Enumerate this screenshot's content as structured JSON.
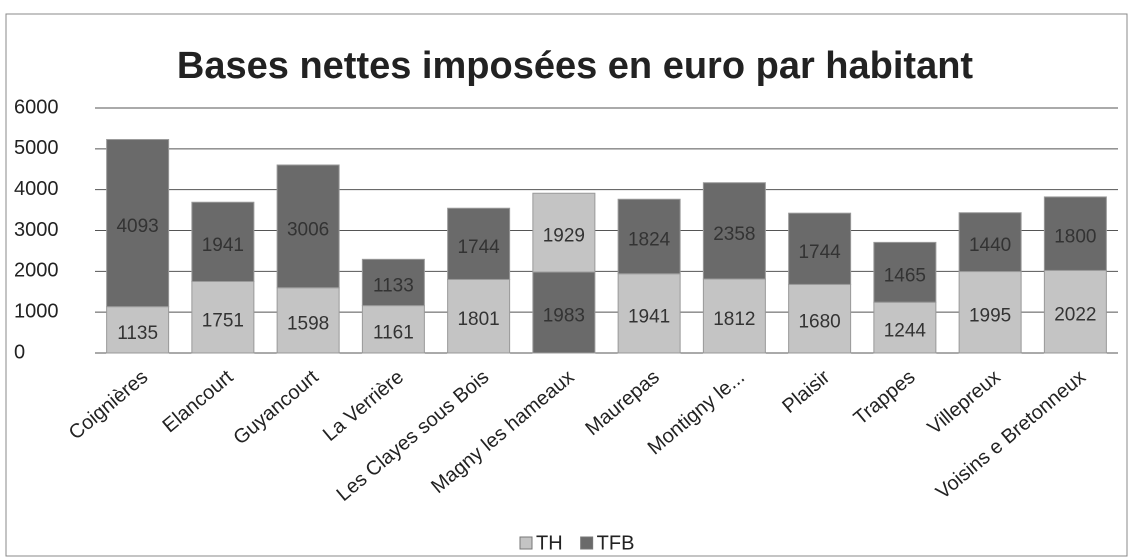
{
  "chart_data": {
    "type": "stacked_bar",
    "title": "Bases nettes imposées en euro par habitant",
    "categories": [
      "Coignières",
      "Elancourt",
      "Guyancourt",
      "La Verrière",
      "Les Clayes sous Bois",
      "Magny les hameaux",
      "Maurepas",
      "Montigny le...",
      "Plaisir",
      "Trappes",
      "Villepreux",
      "Voisins e Bretonneux"
    ],
    "series": [
      {
        "name": "TH",
        "color": "#c4c4c4",
        "values": [
          1135,
          1751,
          1598,
          1161,
          1801,
          1983,
          1941,
          1812,
          1680,
          1244,
          1995,
          2022
        ],
        "colors": [
          "#c4c4c4",
          "#c4c4c4",
          "#c4c4c4",
          "#c4c4c4",
          "#c4c4c4",
          "#6a6a6a",
          "#c4c4c4",
          "#c4c4c4",
          "#c4c4c4",
          "#c4c4c4",
          "#c4c4c4",
          "#c4c4c4"
        ]
      },
      {
        "name": "TFB",
        "color": "#6a6a6a",
        "values": [
          4093,
          1941,
          3006,
          1133,
          1744,
          1929,
          1824,
          2358,
          1744,
          1465,
          1440,
          1800
        ],
        "colors": [
          "#6a6a6a",
          "#6a6a6a",
          "#6a6a6a",
          "#6a6a6a",
          "#6a6a6a",
          "#c4c4c4",
          "#6a6a6a",
          "#6a6a6a",
          "#6a6a6a",
          "#6a6a6a",
          "#6a6a6a",
          "#6a6a6a"
        ]
      }
    ],
    "ylim": [
      0,
      6000
    ],
    "yticks": [
      0,
      1000,
      2000,
      3000,
      4000,
      5000,
      6000
    ],
    "grid": true,
    "legend": "bottom"
  }
}
